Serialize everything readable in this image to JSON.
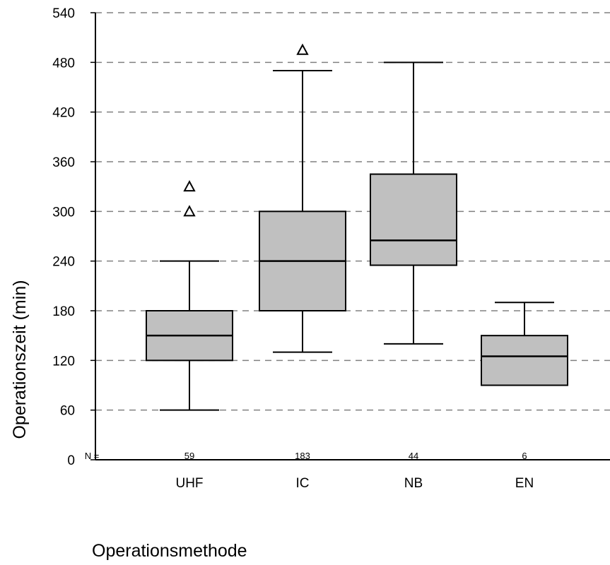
{
  "chart_data": {
    "type": "boxplot",
    "ylabel": "Operationszeit (min)",
    "xlabel": "Operationsmethode",
    "n_prefix": "N =",
    "ylim": [
      0,
      540
    ],
    "yticks": [
      0,
      60,
      120,
      180,
      240,
      300,
      360,
      420,
      480,
      540
    ],
    "grid": "dashed horizontal",
    "colors": {
      "box_fill": "#c0c0c0",
      "stroke": "#000000",
      "grid": "#808080"
    },
    "categories": [
      "UHF",
      "IC",
      "NB",
      "EN"
    ],
    "n_values": [
      "59",
      "183",
      "44",
      "6"
    ],
    "boxes": [
      {
        "category": "UHF",
        "n": 59,
        "whisker_low": 60,
        "q1": 120,
        "median": 150,
        "q3": 180,
        "whisker_high": 240,
        "outliers": [
          300,
          330
        ]
      },
      {
        "category": "IC",
        "n": 183,
        "whisker_low": 130,
        "q1": 180,
        "median": 240,
        "q3": 300,
        "whisker_high": 470,
        "outliers": [
          495
        ]
      },
      {
        "category": "NB",
        "n": 44,
        "whisker_low": 140,
        "q1": 235,
        "median": 265,
        "q3": 345,
        "whisker_high": 480,
        "outliers": []
      },
      {
        "category": "EN",
        "n": 6,
        "whisker_low": 90,
        "q1": 90,
        "median": 125,
        "q3": 150,
        "whisker_high": 190,
        "outliers": []
      }
    ]
  }
}
